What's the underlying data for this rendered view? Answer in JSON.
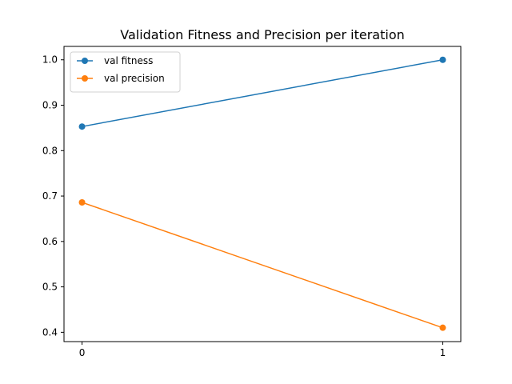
{
  "chart_data": {
    "type": "line",
    "title": "Validation Fitness and Precision per iteration",
    "xlabel": "",
    "ylabel": "",
    "x": [
      0,
      1
    ],
    "x_ticks": [
      "0",
      "1"
    ],
    "y_ticks": [
      "0.4",
      "0.5",
      "0.6",
      "0.7",
      "0.8",
      "0.9",
      "1.0"
    ],
    "xlim": [
      -0.05,
      1.05
    ],
    "ylim": [
      0.3795,
      1.0295
    ],
    "grid": false,
    "legend_position": "top-left",
    "series": [
      {
        "name": "val fitness",
        "color": "#1f77b4",
        "marker": "circle",
        "values": [
          0.853,
          1.0
        ]
      },
      {
        "name": "val precision",
        "color": "#ff7f0e",
        "marker": "circle",
        "values": [
          0.686,
          0.41
        ]
      }
    ]
  }
}
